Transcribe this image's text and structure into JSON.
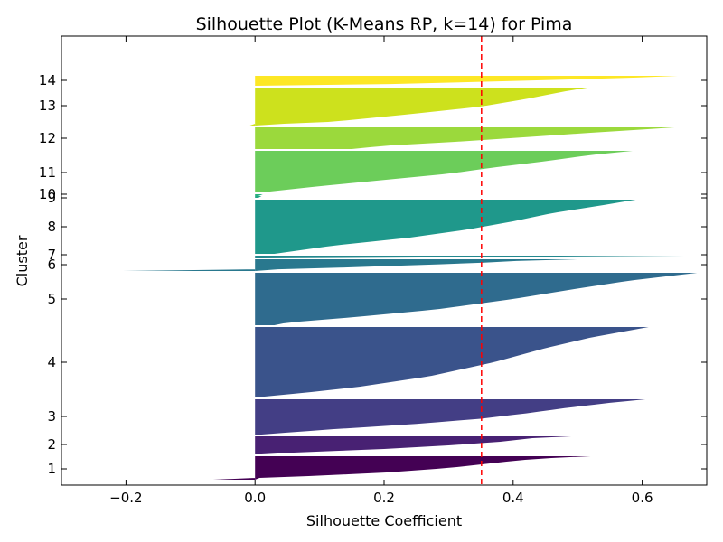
{
  "chart_data": {
    "type": "bar",
    "orientation": "horizontal",
    "title": "Silhouette Plot (K-Means RP, k=14) for Pima",
    "xlabel": "Silhouette Coefficient",
    "ylabel": "Cluster",
    "xlim": [
      -0.3,
      0.7
    ],
    "x_ticks": [
      -0.2,
      0.0,
      0.2,
      0.4,
      0.6
    ],
    "x_tick_labels": [
      "−0.2",
      "0.0",
      "0.2",
      "0.4",
      "0.6"
    ],
    "average_silhouette": 0.351,
    "average_line_color": "#ff0000",
    "grid": false,
    "colormap": "viridis",
    "clusters": [
      {
        "label": "1",
        "color": "#440154",
        "min": -0.065,
        "max": 0.52,
        "shape": [
          [
            0,
            0.52
          ],
          [
            0.04,
            0.49
          ],
          [
            0.1,
            0.44
          ],
          [
            0.2,
            0.4
          ],
          [
            0.35,
            0.35
          ],
          [
            0.5,
            0.3
          ],
          [
            0.7,
            0.2
          ],
          [
            0.85,
            0.08
          ],
          [
            0.93,
            0.0
          ],
          [
            0.97,
            -0.04
          ],
          [
            1,
            -0.065
          ]
        ]
      },
      {
        "label": "2",
        "color": "#482173",
        "min": 0.0,
        "max": 0.49,
        "shape": [
          [
            0,
            0.49
          ],
          [
            0.1,
            0.43
          ],
          [
            0.3,
            0.38
          ],
          [
            0.5,
            0.3
          ],
          [
            0.7,
            0.2
          ],
          [
            0.9,
            0.06
          ],
          [
            1,
            0.01
          ]
        ]
      },
      {
        "label": "3",
        "color": "#433e85",
        "min": 0.0,
        "max": 0.605,
        "shape": [
          [
            0,
            0.605
          ],
          [
            0.1,
            0.55
          ],
          [
            0.25,
            0.48
          ],
          [
            0.4,
            0.42
          ],
          [
            0.55,
            0.35
          ],
          [
            0.7,
            0.25
          ],
          [
            0.85,
            0.12
          ],
          [
            1,
            0.01
          ]
        ]
      },
      {
        "label": "4",
        "color": "#3a538b",
        "min": 0.0,
        "max": 0.61,
        "shape": [
          [
            0,
            0.61
          ],
          [
            0.05,
            0.58
          ],
          [
            0.15,
            0.52
          ],
          [
            0.3,
            0.45
          ],
          [
            0.5,
            0.37
          ],
          [
            0.7,
            0.27
          ],
          [
            0.85,
            0.16
          ],
          [
            0.93,
            0.08
          ],
          [
            1,
            0.0
          ]
        ]
      },
      {
        "label": "5",
        "color": "#2f6b8e",
        "min": 0.0,
        "max": 0.685,
        "shape": [
          [
            0,
            0.685
          ],
          [
            0.05,
            0.65
          ],
          [
            0.15,
            0.58
          ],
          [
            0.3,
            0.5
          ],
          [
            0.5,
            0.4
          ],
          [
            0.7,
            0.28
          ],
          [
            0.85,
            0.15
          ],
          [
            0.95,
            0.05
          ],
          [
            1,
            0.03
          ]
        ]
      },
      {
        "label": "6",
        "color": "#29788e",
        "min": -0.205,
        "max": 0.5,
        "shape": [
          [
            0,
            0.5
          ],
          [
            0.1,
            0.42
          ],
          [
            0.3,
            0.35
          ],
          [
            0.5,
            0.25
          ],
          [
            0.7,
            0.14
          ],
          [
            0.85,
            0.04
          ],
          [
            0.93,
            -0.01
          ],
          [
            1,
            -0.205
          ]
        ]
      },
      {
        "label": "7",
        "color": "#23888e",
        "min": 0.01,
        "max": 0.665,
        "shape": [
          [
            0,
            0.665
          ],
          [
            0.2,
            0.5
          ],
          [
            0.5,
            0.38
          ],
          [
            0.8,
            0.15
          ],
          [
            1,
            0.01
          ]
        ]
      },
      {
        "label": "8",
        "color": "#1f988b",
        "min": 0.0,
        "max": 0.59,
        "shape": [
          [
            0,
            0.59
          ],
          [
            0.1,
            0.54
          ],
          [
            0.25,
            0.46
          ],
          [
            0.4,
            0.4
          ],
          [
            0.55,
            0.33
          ],
          [
            0.7,
            0.24
          ],
          [
            0.85,
            0.12
          ],
          [
            1,
            0.03
          ]
        ]
      },
      {
        "label": "9",
        "color": "#22a785",
        "min": 0.0,
        "max": 0.01,
        "shape": [
          [
            0,
            0.01
          ],
          [
            1,
            0.005
          ]
        ]
      },
      {
        "label": "10",
        "color": "#2ab07f",
        "min": 0.0,
        "max": 0.012,
        "shape": [
          [
            0,
            0.012
          ],
          [
            1,
            0.005
          ]
        ]
      },
      {
        "label": "11",
        "color": "#6ccd5a",
        "min": 0.0,
        "max": 0.585,
        "shape": [
          [
            0,
            0.585
          ],
          [
            0.1,
            0.52
          ],
          [
            0.25,
            0.45
          ],
          [
            0.4,
            0.37
          ],
          [
            0.55,
            0.3
          ],
          [
            0.7,
            0.2
          ],
          [
            0.85,
            0.1
          ],
          [
            1,
            0.01
          ]
        ]
      },
      {
        "label": "12",
        "color": "#9bd93c",
        "min": 0.0,
        "max": 0.65,
        "shape": [
          [
            0,
            0.65
          ],
          [
            0.1,
            0.6
          ],
          [
            0.25,
            0.52
          ],
          [
            0.45,
            0.42
          ],
          [
            0.65,
            0.32
          ],
          [
            0.85,
            0.2
          ],
          [
            1,
            0.15
          ]
        ]
      },
      {
        "label": "13",
        "color": "#cde11d",
        "min": -0.008,
        "max": 0.515,
        "shape": [
          [
            0,
            0.515
          ],
          [
            0.1,
            0.48
          ],
          [
            0.3,
            0.42
          ],
          [
            0.5,
            0.35
          ],
          [
            0.7,
            0.24
          ],
          [
            0.9,
            0.12
          ],
          [
            0.97,
            0.02
          ],
          [
            1,
            -0.008
          ]
        ]
      },
      {
        "label": "14",
        "color": "#fde725",
        "min": 0.0,
        "max": 0.655,
        "shape": [
          [
            0,
            0.655
          ],
          [
            0.15,
            0.6
          ],
          [
            0.35,
            0.5
          ],
          [
            0.6,
            0.35
          ],
          [
            0.85,
            0.2
          ],
          [
            1,
            0.0
          ]
        ]
      }
    ]
  }
}
